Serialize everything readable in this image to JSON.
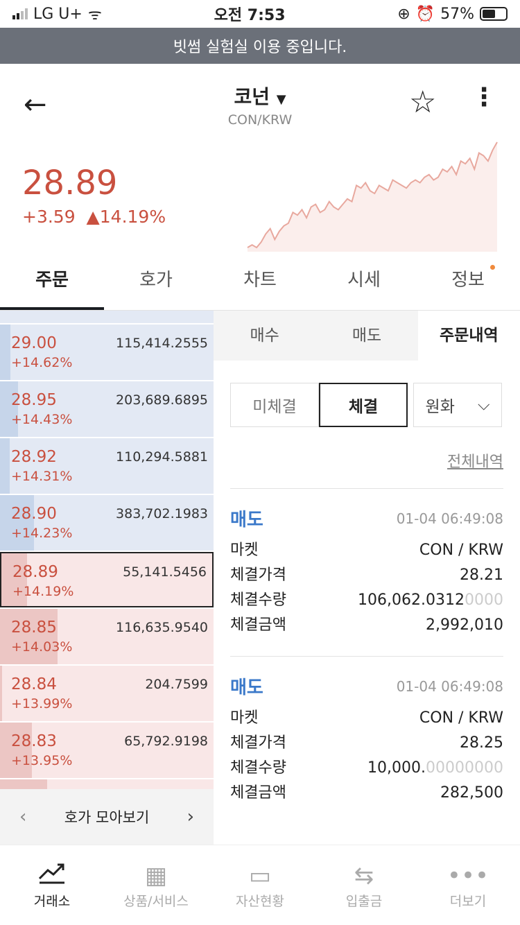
{
  "status_bar": {
    "carrier": "LG U+",
    "time": "오전 7:53",
    "battery": "57%",
    "battery_level": 57
  },
  "banner": "빗썸 실험실 이용 중입니다.",
  "header": {
    "coin_name": "코넌",
    "pair": "CON/KRW"
  },
  "ticker": {
    "price": "28.89",
    "change": "+3.59",
    "change_pct": "▲14.19%",
    "color": "#c9503f"
  },
  "sparkline": {
    "values": [
      1,
      2,
      1,
      3,
      6,
      8,
      4,
      7,
      9,
      10,
      14,
      13,
      15,
      12,
      16,
      17,
      14,
      15,
      18,
      16,
      15,
      17,
      19,
      18,
      24,
      23,
      25,
      22,
      21,
      24,
      23,
      22,
      26,
      25,
      24,
      23,
      25,
      26,
      25,
      27,
      28,
      26,
      27,
      30,
      29,
      31,
      28,
      33,
      32,
      34,
      30,
      36,
      35,
      33,
      37,
      40
    ],
    "color": "#e8a89e"
  },
  "tabs": [
    {
      "label": "주문"
    },
    {
      "label": "호가"
    },
    {
      "label": "차트"
    },
    {
      "label": "시세"
    },
    {
      "label": "정보"
    }
  ],
  "orderbook": {
    "asks": [
      {
        "price": "29.00",
        "pct": "+14.62%",
        "volume": "115,414.2555",
        "level": 0.05
      },
      {
        "price": "28.95",
        "pct": "+14.43%",
        "volume": "203,689.6895",
        "level": 0.085
      },
      {
        "price": "28.92",
        "pct": "+14.31%",
        "volume": "110,294.5881",
        "level": 0.045
      },
      {
        "price": "28.90",
        "pct": "+14.23%",
        "volume": "383,702.1983",
        "level": 0.16
      }
    ],
    "bids": [
      {
        "price": "28.89",
        "pct": "+14.19%",
        "volume": "55,141.5456",
        "level": 0.12,
        "current": true
      },
      {
        "price": "28.85",
        "pct": "+14.03%",
        "volume": "116,635.9540",
        "level": 0.27
      },
      {
        "price": "28.84",
        "pct": "+13.99%",
        "volume": "204.7599",
        "level": 0.01
      },
      {
        "price": "28.83",
        "pct": "+13.95%",
        "volume": "65,792.9198",
        "level": 0.15
      }
    ],
    "collect_label": "호가 모아보기"
  },
  "order_panel": {
    "subtabs": [
      {
        "label": "매수"
      },
      {
        "label": "매도"
      },
      {
        "label": "주문내역"
      }
    ],
    "segments": [
      {
        "label": "미체결"
      },
      {
        "label": "체결"
      }
    ],
    "currency": "원화",
    "all_history": "전체내역",
    "trades": [
      {
        "type": "매도",
        "time": "01-04 06:49:08",
        "market_label": "마켓",
        "market": "CON / KRW",
        "price_label": "체결가격",
        "price": "28.21",
        "qty_label": "체결수량",
        "qty": "106,062.0312",
        "qty_zeros": "0000",
        "amt_label": "체결금액",
        "amount": "2,992,010"
      },
      {
        "type": "매도",
        "time": "01-04 06:49:08",
        "market_label": "마켓",
        "market": "CON / KRW",
        "price_label": "체결가격",
        "price": "28.25",
        "qty_label": "체결수량",
        "qty": "10,000.",
        "qty_zeros": "00000000",
        "amt_label": "체결금액",
        "amount": "282,500"
      }
    ]
  },
  "bottom_nav": [
    {
      "label": "거래소",
      "icon": "chart-line-icon"
    },
    {
      "label": "상품/서비스",
      "icon": "grid-icon"
    },
    {
      "label": "자산현황",
      "icon": "wallet-icon"
    },
    {
      "label": "입출금",
      "icon": "transfer-icon"
    },
    {
      "label": "더보기",
      "icon": "more-icon"
    }
  ]
}
